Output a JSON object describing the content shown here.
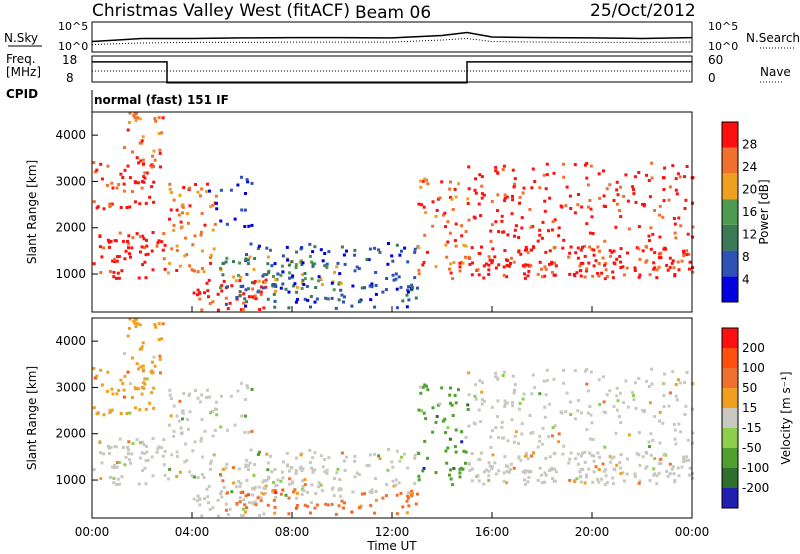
{
  "header": {
    "station": "Christmas Valley West (fitACF)",
    "beam": "Beam 06",
    "date": "25/Oct/2012"
  },
  "labels": {
    "nsky": "N.Sky",
    "nsearch": "N.Search",
    "freq": "Freq.",
    "freq_unit": "[MHz]",
    "nave": "Nave",
    "cpid": "CPID",
    "cpid_value": "normal (fast) 151 IF",
    "slant_range": "Slant Range [km]",
    "time_ut": "Time UT",
    "power_label": "Power [dB]",
    "velocity_label": "Velocity [m s⁻¹]"
  },
  "colors": {
    "power": [
      "#0000e0",
      "#2d52b4",
      "#3a7a57",
      "#4e9a4e",
      "#f0a020",
      "#f07030",
      "#ff1010"
    ],
    "velocity": [
      "#2020b0",
      "#2e6f2e",
      "#4fa02e",
      "#8ccf4a",
      "#c8c8c0",
      "#f0a020",
      "#f07030",
      "#ff5010",
      "#ff1010"
    ]
  },
  "chart_data": [
    {
      "type": "line",
      "title": "N.Sky / N.Search",
      "left_ticks": [
        "10^5",
        "10^0"
      ],
      "right_ticks": [
        "10^5",
        "10^0"
      ],
      "x": [
        "00:00",
        "02:00",
        "04:00",
        "06:00",
        "08:00",
        "10:00",
        "12:00",
        "14:00",
        "15:00",
        "16:00",
        "18:00",
        "20:00",
        "22:00",
        "24:00"
      ],
      "series": [
        {
          "name": "N.Sky",
          "values": [
            0.35,
            0.45,
            0.45,
            0.47,
            0.48,
            0.48,
            0.47,
            0.55,
            0.65,
            0.5,
            0.48,
            0.47,
            0.45,
            0.48
          ]
        },
        {
          "name": "N.Search",
          "values": [
            0.25,
            0.3,
            0.32,
            0.32,
            0.33,
            0.33,
            0.33,
            0.4,
            0.45,
            0.35,
            0.33,
            0.32,
            0.32,
            0.33
          ]
        }
      ]
    },
    {
      "type": "line",
      "title": "Freq. / Nave",
      "left_ticks": [
        "18",
        "8"
      ],
      "right_ticks": [
        "60",
        "0"
      ],
      "segments": [
        {
          "from": "00:00",
          "to": "03:00",
          "freq_mhz": 16.5
        },
        {
          "from": "03:00",
          "to": "15:00",
          "freq_mhz": 8.5
        },
        {
          "from": "15:00",
          "to": "24:00",
          "freq_mhz": 16.5
        }
      ]
    },
    {
      "type": "heatmap",
      "ylabel": "Slant Range [km]",
      "y_ticks": [
        "1000",
        "2000",
        "3000",
        "4000"
      ],
      "ylim": [
        180,
        4500
      ],
      "colorbar": {
        "label": "Power [dB]",
        "ticks": [
          "4",
          "8",
          "12",
          "16",
          "20",
          "24",
          "28"
        ]
      }
    },
    {
      "type": "heatmap",
      "xlabel": "Time UT",
      "ylabel": "Slant Range [km]",
      "x_ticks": [
        "00:00",
        "04:00",
        "08:00",
        "12:00",
        "16:00",
        "20:00",
        "00:00"
      ],
      "y_ticks": [
        "1000",
        "2000",
        "3000",
        "4000"
      ],
      "ylim": [
        180,
        4500
      ],
      "colorbar": {
        "label": "Velocity [m s⁻¹]",
        "ticks": [
          "200",
          "100",
          "50",
          "15",
          "-15",
          "-50",
          "-100",
          "-200"
        ]
      }
    }
  ]
}
